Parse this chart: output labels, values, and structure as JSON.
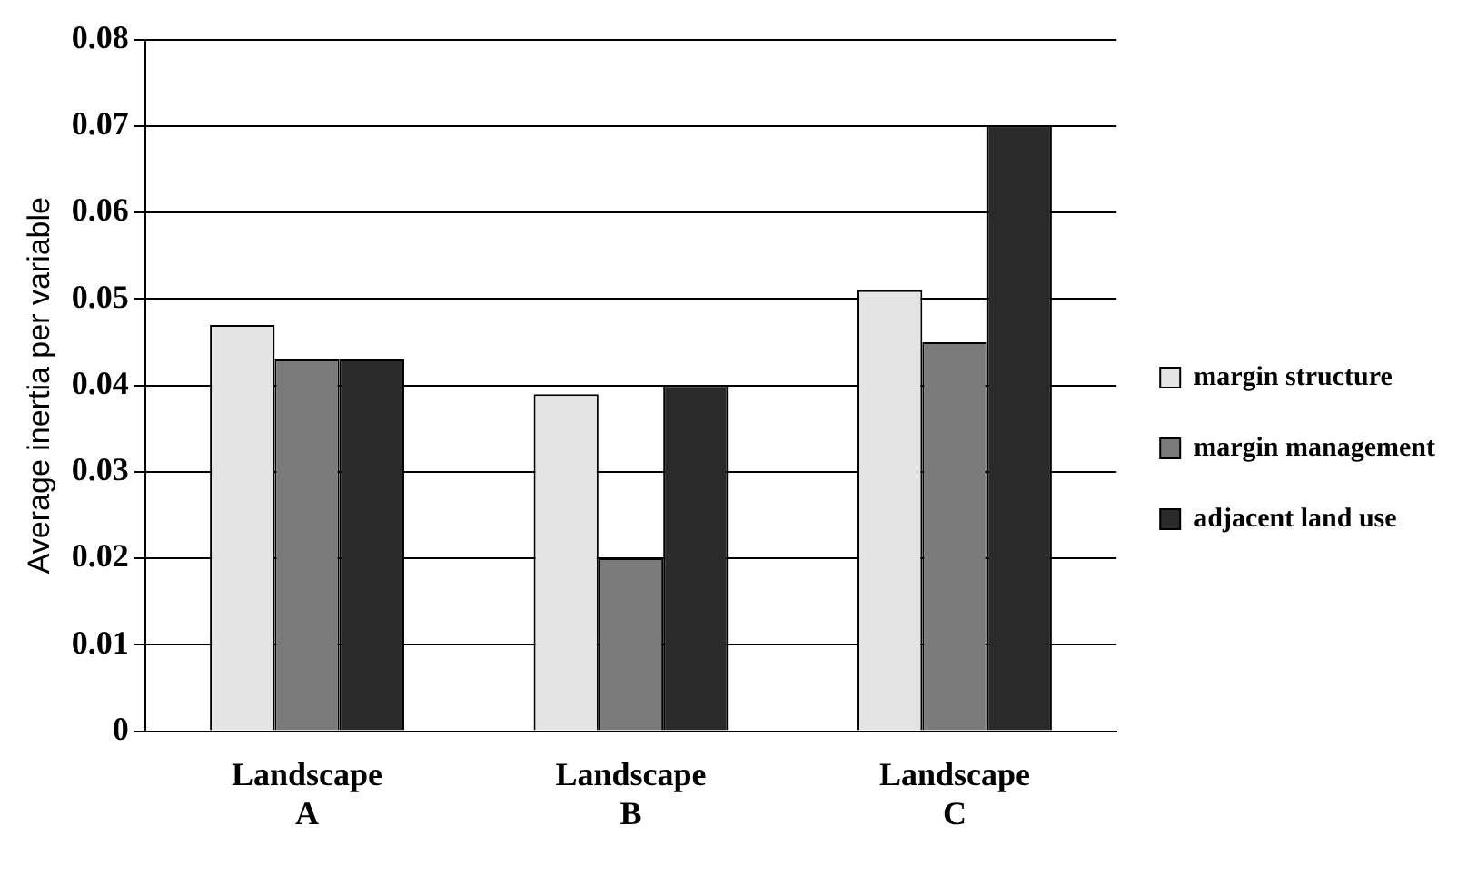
{
  "chart_data": {
    "type": "bar",
    "ylabel": "Average inertia per variable",
    "categories": [
      "Landscape A",
      "Landscape B",
      "Landscape C"
    ],
    "series": [
      {
        "name": "margin structure",
        "color": "#e4e4e4",
        "values": [
          0.047,
          0.039,
          0.051
        ]
      },
      {
        "name": "margin management",
        "color": "#7a7a7a",
        "values": [
          0.043,
          0.02,
          0.045
        ]
      },
      {
        "name": "adjacent land use",
        "color": "#2a2a2a",
        "values": [
          0.043,
          0.04,
          0.07
        ]
      }
    ],
    "ylim": [
      0,
      0.08
    ],
    "yticks": [
      0,
      0.01,
      0.02,
      0.03,
      0.04,
      0.05,
      0.06,
      0.07,
      0.08
    ],
    "grid": "y",
    "legend": "right"
  }
}
